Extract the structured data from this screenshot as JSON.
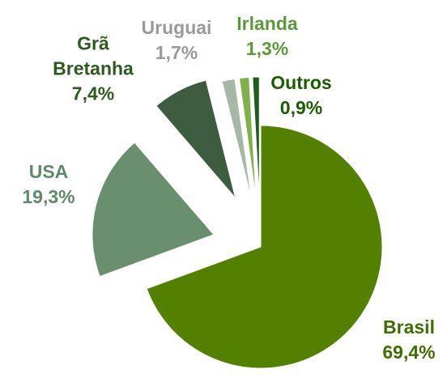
{
  "chart_data": {
    "type": "pie",
    "categories": [
      "Brasil",
      "USA",
      "Grã Bretanha",
      "Uruguai",
      "Irlanda",
      "Outros"
    ],
    "values": [
      69.4,
      19.3,
      7.4,
      1.7,
      1.3,
      0.9
    ],
    "value_labels": [
      "69,4%",
      "19,3%",
      "7,4%",
      "1,7%",
      "1,3%",
      "0,9%"
    ],
    "colors": [
      "#548000",
      "#6a8f6e",
      "#3d5c40",
      "#a5b8a5",
      "#7fb04a",
      "#1f5c1f"
    ],
    "label_colors": [
      "#3f6f00",
      "#5e8a68",
      "#2d5a1e",
      "#9a9a9a",
      "#5a9a3a",
      "#1a5c00"
    ]
  }
}
